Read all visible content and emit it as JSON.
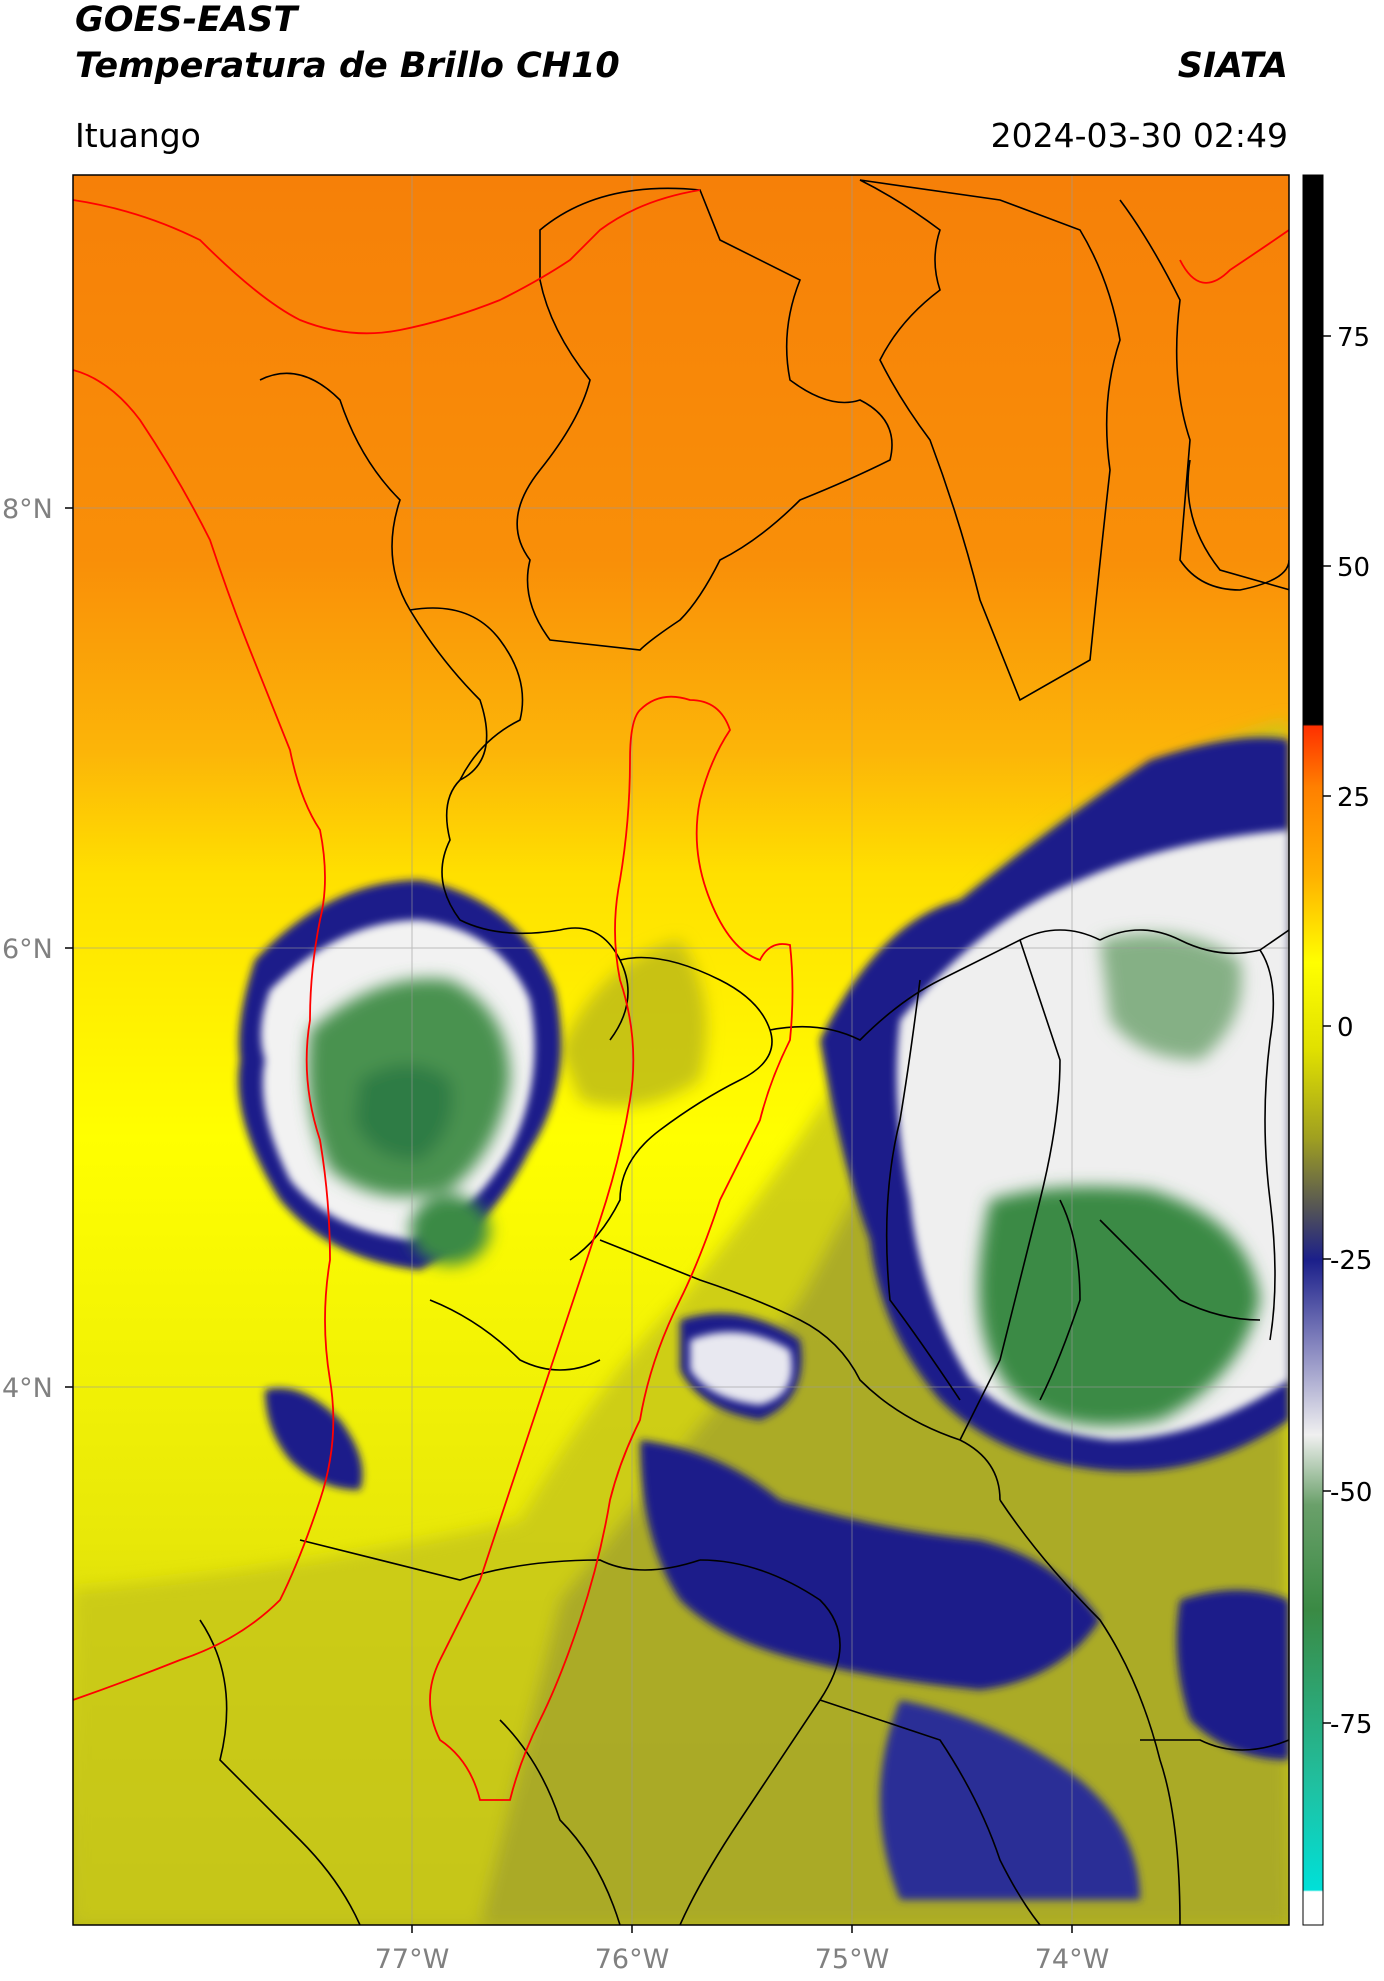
{
  "header": {
    "title_line1": "GOES-EAST",
    "title_line2": "Temperatura de Brillo CH10",
    "brand": "SIATA",
    "location": "Ituango",
    "timestamp": "2024-03-30 02:49"
  },
  "map": {
    "lat_labels": [
      "8°N",
      "6°N",
      "4°N"
    ],
    "lon_labels": [
      "77°W",
      "76°W",
      "75°W",
      "74°W"
    ],
    "colors": {
      "warm_orange": "#f7800a",
      "orange": "#fba00a",
      "yellow": "#ffff00",
      "olive": "#a0a020",
      "navy": "#1b1f8a",
      "white": "#f4f4f4",
      "green": "#3a8a44",
      "boundary_black": "#000000",
      "boundary_red": "#ff0000",
      "grid": "#999999"
    }
  },
  "colorbar": {
    "ticks": [
      "75",
      "50",
      "25",
      "0",
      "-25",
      "-50",
      "-75"
    ]
  }
}
